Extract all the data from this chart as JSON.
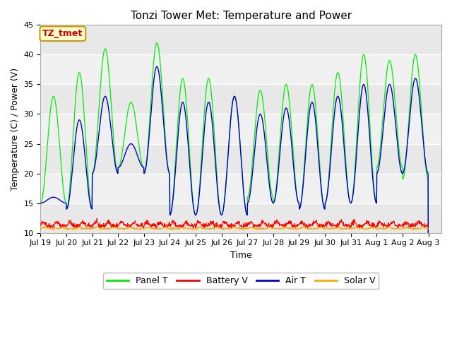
{
  "title": "Tonzi Tower Met: Temperature and Power",
  "xlabel": "Time",
  "ylabel": "Temperature (C) / Power (V)",
  "ylim": [
    10,
    45
  ],
  "x_tick_labels": [
    "Jul 19",
    "Jul 20",
    "Jul 21",
    "Jul 22",
    "Jul 23",
    "Jul 24",
    "Jul 25",
    "Jul 26",
    "Jul 27",
    "Jul 28",
    "Jul 29",
    "Jul 30",
    "Jul 31",
    "Aug 1",
    "Aug 2",
    "Aug 3"
  ],
  "annotation_text": "TZ_tmet",
  "annotation_color": "#cc0000",
  "annotation_bg": "#ffffcc",
  "annotation_border": "#cc9900",
  "panel_t_color": "#00ee00",
  "air_t_color": "#0000cc",
  "battery_v_color": "#ff0000",
  "solar_v_color": "#ffaa00",
  "fig_bg_color": "#ffffff",
  "plot_bg_color": "#e8e8e8",
  "band_color_light": "#f0f0f0",
  "band_color_dark": "#e0e0e0",
  "grid_color": "#ffffff",
  "legend_labels": [
    "Panel T",
    "Battery V",
    "Air T",
    "Solar V"
  ],
  "title_fontsize": 11,
  "label_fontsize": 9,
  "tick_fontsize": 8,
  "panel_peaks": [
    33,
    37,
    41,
    32,
    42,
    36,
    36,
    33,
    34,
    35,
    35,
    37,
    40,
    39,
    40,
    22
  ],
  "panel_mins": [
    15,
    14,
    20,
    21,
    20,
    13,
    13,
    13,
    16,
    15,
    14,
    15,
    15,
    21,
    19,
    21
  ],
  "air_peaks": [
    16,
    29,
    33,
    25,
    38,
    32,
    32,
    33,
    30,
    31,
    32,
    33,
    35,
    35,
    36,
    23
  ],
  "air_mins": [
    15,
    14,
    20,
    21,
    20,
    13,
    13,
    13,
    15,
    15,
    14,
    15,
    15,
    20,
    20,
    21
  ],
  "n_days": 15,
  "pts_per_day": 96
}
